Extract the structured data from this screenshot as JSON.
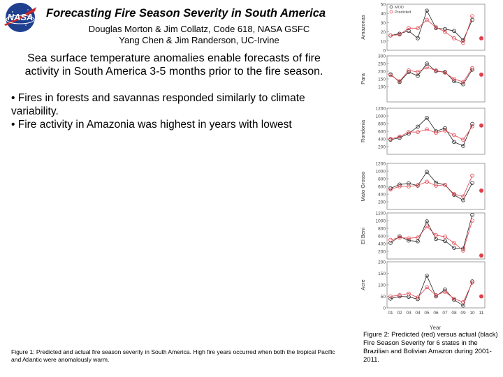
{
  "header": {
    "logo_text": "NASA",
    "title": "Forecasting Fire Season Severity in South America",
    "authors_line1": "Douglas Morton & Jim Collatz, Code 618, NASA GSFC",
    "authors_line2": "Yang Chen & Jim Randerson, UC-Irvine"
  },
  "intro": "Sea surface temperature anomalies enable forecasts of fire activity in South America 3-5 months prior to the fire season.",
  "bullets": [
    "• Fires in forests and savannas responded similarly to climate variability.",
    "• Fire activity in Amazonia was highest in years with lowest"
  ],
  "captions": {
    "figure1": "Figure 1: Predicted and actual fire season severity in South America. High fire years occurred when both the tropical Pacific and Atlantic were anomalously warm.",
    "figure2": "Figure 2: Predicted (red) versus actual (black) Fire Season Severity for 6 states in the Brazilian and Bolivian Amazon during 2001-2011."
  },
  "colors": {
    "observed": "#222222",
    "predicted": "#e0404a",
    "axis": "#888888"
  },
  "chart_data": {
    "type": "line",
    "title": "",
    "xlabel": "Year",
    "categories": [
      "01",
      "02",
      "03",
      "04",
      "05",
      "06",
      "07",
      "08",
      "09",
      "10",
      "11"
    ],
    "legend": {
      "position": "top-left",
      "entries": [
        "MOD",
        "Predicted"
      ]
    },
    "panels": [
      {
        "name": "Amazonas",
        "ylim": [
          0,
          50
        ],
        "yticks": [
          0,
          10,
          20,
          30,
          40,
          50
        ],
        "series": [
          {
            "name": "MOD",
            "values": [
              16,
              18,
              21,
              13,
              43,
              24,
              23,
              21,
              11,
              33,
              null
            ]
          },
          {
            "name": "Predicted",
            "values": [
              16,
              17,
              24,
              24,
              33,
              25,
              20,
              13,
              8,
              37,
              13
            ]
          }
        ]
      },
      {
        "name": "Para",
        "ylim": [
          0,
          300
        ],
        "yticks": [
          100,
          150,
          200,
          250,
          300
        ],
        "series": [
          {
            "name": "MOD",
            "values": [
              180,
              130,
              195,
              170,
              250,
              200,
              195,
              135,
              115,
              210,
              null
            ]
          },
          {
            "name": "Predicted",
            "values": [
              175,
              135,
              205,
              195,
              225,
              205,
              190,
              150,
              130,
              220,
              178
            ]
          }
        ]
      },
      {
        "name": "Rondonia",
        "ylim": [
          0,
          1200
        ],
        "yticks": [
          200,
          400,
          600,
          800,
          1000,
          1200
        ],
        "series": [
          {
            "name": "MOD",
            "values": [
              380,
              430,
              540,
              720,
              950,
              600,
              680,
              320,
              220,
              790,
              null
            ]
          },
          {
            "name": "Predicted",
            "values": [
              400,
              460,
              580,
              580,
              650,
              560,
              620,
              500,
              380,
              730,
              750
            ]
          }
        ]
      },
      {
        "name": "Mato Grosso",
        "ylim": [
          0,
          1200
        ],
        "yticks": [
          200,
          400,
          600,
          800,
          1000,
          1200
        ],
        "series": [
          {
            "name": "MOD",
            "values": [
              550,
              650,
              680,
              620,
              980,
              700,
              640,
              380,
              240,
              690,
              null
            ]
          },
          {
            "name": "Predicted",
            "values": [
              520,
              600,
              600,
              630,
              720,
              620,
              640,
              400,
              340,
              880,
              490
            ]
          }
        ]
      },
      {
        "name": "El Beni",
        "ylim": [
          0,
          1200
        ],
        "yticks": [
          200,
          400,
          600,
          800,
          1000,
          1200
        ],
        "series": [
          {
            "name": "MOD",
            "values": [
              420,
              590,
              480,
              460,
              980,
              520,
              470,
              290,
              270,
              1150,
              null
            ]
          },
          {
            "name": "Predicted",
            "values": [
              500,
              560,
              540,
              560,
              850,
              620,
              580,
              420,
              220,
              1000,
              90
            ]
          }
        ]
      },
      {
        "name": "Acre",
        "ylim": [
          0,
          200
        ],
        "yticks": [
          0,
          50,
          100,
          150,
          200
        ],
        "series": [
          {
            "name": "MOD",
            "values": [
              40,
              50,
              48,
              38,
              140,
              50,
              80,
              35,
              10,
              115,
              null
            ]
          },
          {
            "name": "Predicted",
            "values": [
              50,
              55,
              62,
              45,
              90,
              55,
              70,
              40,
              25,
              110,
              50
            ]
          }
        ]
      }
    ]
  }
}
